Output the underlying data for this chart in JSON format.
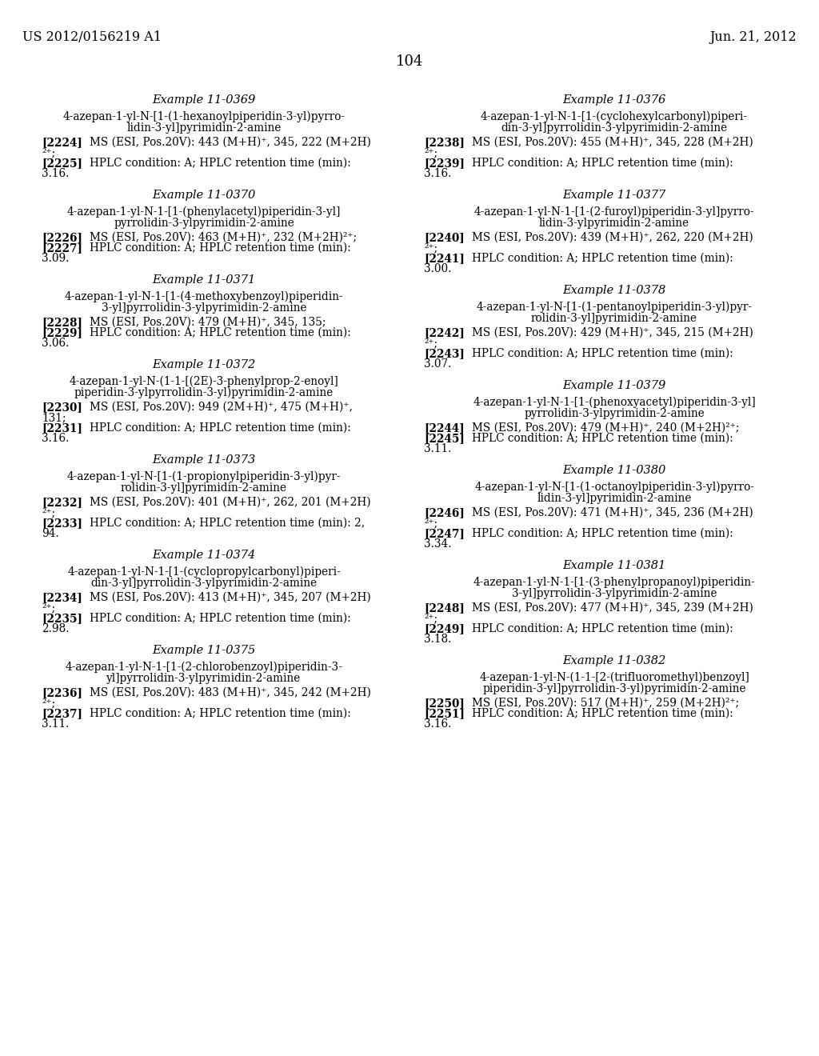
{
  "header_left": "US 2012/0156219 A1",
  "header_right": "Jun. 21, 2012",
  "page_number": "104",
  "background_color": "#ffffff",
  "left_column": [
    {
      "example": "Example 11-0369",
      "compound_lines": [
        "4-azepan-1-yl-N-[1-(1-hexanoylpiperidin-3-yl)pyrro-",
        "lidin-3-yl]pyrimidin-2-amine"
      ],
      "entries": [
        {
          "num": "2224",
          "text_lines": [
            "MS (ESI, Pos.20V): 443 (M+H)⁺, 345, 222 (M+2H)",
            "²⁺;"
          ]
        },
        {
          "num": "2225",
          "text_lines": [
            "HPLC condition: A; HPLC retention time (min):",
            "3.16."
          ]
        }
      ]
    },
    {
      "example": "Example 11-0370",
      "compound_lines": [
        "4-azepan-1-yl-N-1-[1-(phenylacetyl)piperidin-3-yl]",
        "pyrrolidin-3-ylpyrimidin-2-amine"
      ],
      "entries": [
        {
          "num": "2226",
          "text_lines": [
            "MS (ESI, Pos.20V): 463 (M+H)⁺, 232 (M+2H)²⁺;"
          ]
        },
        {
          "num": "2227",
          "text_lines": [
            "HPLC condition: A; HPLC retention time (min):",
            "3.09."
          ]
        }
      ]
    },
    {
      "example": "Example 11-0371",
      "compound_lines": [
        "4-azepan-1-yl-N-1-[1-(4-methoxybenzoyl)piperidin-",
        "3-yl]pyrrolidin-3-ylpyrimidin-2-amine"
      ],
      "entries": [
        {
          "num": "2228",
          "text_lines": [
            "MS (ESI, Pos.20V): 479 (M+H)⁺, 345, 135;"
          ]
        },
        {
          "num": "2229",
          "text_lines": [
            "HPLC condition: A; HPLC retention time (min):",
            "3.06."
          ]
        }
      ]
    },
    {
      "example": "Example 11-0372",
      "compound_lines": [
        "4-azepan-1-yl-N-(1-1-[(2E)-3-phenylprop-2-enoyl]",
        "piperidin-3-ylpyrrolidin-3-yl)pyrimidin-2-amine"
      ],
      "entries": [
        {
          "num": "2230",
          "text_lines": [
            "MS (ESI, Pos.20V): 949 (2M+H)⁺, 475 (M+H)⁺,",
            "131;"
          ]
        },
        {
          "num": "2231",
          "text_lines": [
            "HPLC condition: A; HPLC retention time (min):",
            "3.16."
          ]
        }
      ]
    },
    {
      "example": "Example 11-0373",
      "compound_lines": [
        "4-azepan-1-yl-N-[1-(1-propionylpiperidin-3-yl)pyr-",
        "rolidin-3-yl]pyrimidin-2-amine"
      ],
      "entries": [
        {
          "num": "2232",
          "text_lines": [
            "MS (ESI, Pos.20V): 401 (M+H)⁺, 262, 201 (M+2H)",
            "²⁺;"
          ]
        },
        {
          "num": "2233",
          "text_lines": [
            "HPLC condition: A; HPLC retention time (min): 2,",
            "94."
          ]
        }
      ]
    },
    {
      "example": "Example 11-0374",
      "compound_lines": [
        "4-azepan-1-yl-N-1-[1-(cyclopropylcarbonyl)piperi-",
        "din-3-yl]pyrrolidin-3-ylpyrimidin-2-amine"
      ],
      "entries": [
        {
          "num": "2234",
          "text_lines": [
            "MS (ESI, Pos.20V): 413 (M+H)⁺, 345, 207 (M+2H)",
            "²⁺;"
          ]
        },
        {
          "num": "2235",
          "text_lines": [
            "HPLC condition: A; HPLC retention time (min):",
            "2.98."
          ]
        }
      ]
    },
    {
      "example": "Example 11-0375",
      "compound_lines": [
        "4-azepan-1-yl-N-1-[1-(2-chlorobenzoyl)piperidin-3-",
        "yl]pyrrolidin-3-ylpyrimidin-2-amine"
      ],
      "entries": [
        {
          "num": "2236",
          "text_lines": [
            "MS (ESI, Pos.20V): 483 (M+H)⁺, 345, 242 (M+2H)",
            "²⁺;"
          ]
        },
        {
          "num": "2237",
          "text_lines": [
            "HPLC condition: A; HPLC retention time (min):",
            "3.11."
          ]
        }
      ]
    }
  ],
  "right_column": [
    {
      "example": "Example 11-0376",
      "compound_lines": [
        "4-azepan-1-yl-N-1-[1-(cyclohexylcarbonyl)piperi-",
        "din-3-yl]pyrrolidin-3-ylpyrimidin-2-amine"
      ],
      "entries": [
        {
          "num": "2238",
          "text_lines": [
            "MS (ESI, Pos.20V): 455 (M+H)⁺, 345, 228 (M+2H)",
            "²⁺;"
          ]
        },
        {
          "num": "2239",
          "text_lines": [
            "HPLC condition: A; HPLC retention time (min):",
            "3.16."
          ]
        }
      ]
    },
    {
      "example": "Example 11-0377",
      "compound_lines": [
        "4-azepan-1-yl-N-1-[1-(2-furoyl)piperidin-3-yl]pyrro-",
        "lidin-3-ylpyrimidin-2-amine"
      ],
      "entries": [
        {
          "num": "2240",
          "text_lines": [
            "MS (ESI, Pos.20V): 439 (M+H)⁺, 262, 220 (M+2H)",
            "²⁺;"
          ]
        },
        {
          "num": "2241",
          "text_lines": [
            "HPLC condition: A; HPLC retention time (min):",
            "3.00."
          ]
        }
      ]
    },
    {
      "example": "Example 11-0378",
      "compound_lines": [
        "4-azepan-1-yl-N-[1-(1-pentanoylpiperidin-3-yl)pyr-",
        "rolidin-3-yl]pyrimidin-2-amine"
      ],
      "entries": [
        {
          "num": "2242",
          "text_lines": [
            "MS (ESI, Pos.20V): 429 (M+H)⁺, 345, 215 (M+2H)",
            "²⁺;"
          ]
        },
        {
          "num": "2243",
          "text_lines": [
            "HPLC condition: A; HPLC retention time (min):",
            "3.07."
          ]
        }
      ]
    },
    {
      "example": "Example 11-0379",
      "compound_lines": [
        "4-azepan-1-yl-N-1-[1-(phenoxyacetyl)piperidin-3-yl]",
        "pyrrolidin-3-ylpyrimidin-2-amine"
      ],
      "entries": [
        {
          "num": "2244",
          "text_lines": [
            "MS (ESI, Pos.20V): 479 (M+H)⁺, 240 (M+2H)²⁺;"
          ]
        },
        {
          "num": "2245",
          "text_lines": [
            "HPLC condition: A; HPLC retention time (min):",
            "3.11."
          ]
        }
      ]
    },
    {
      "example": "Example 11-0380",
      "compound_lines": [
        "4-azepan-1-yl-N-[1-(1-octanoylpiperidin-3-yl)pyrro-",
        "lidin-3-yl]pyrimidin-2-amine"
      ],
      "entries": [
        {
          "num": "2246",
          "text_lines": [
            "MS (ESI, Pos.20V): 471 (M+H)⁺, 345, 236 (M+2H)",
            "²⁺;"
          ]
        },
        {
          "num": "2247",
          "text_lines": [
            "HPLC condition: A; HPLC retention time (min):",
            "3.34."
          ]
        }
      ]
    },
    {
      "example": "Example 11-0381",
      "compound_lines": [
        "4-azepan-1-yl-N-1-[1-(3-phenylpropanoyl)piperidin-",
        "3-yl]pyrrolidin-3-ylpyrimidin-2-amine"
      ],
      "entries": [
        {
          "num": "2248",
          "text_lines": [
            "MS (ESI, Pos.20V): 477 (M+H)⁺, 345, 239 (M+2H)",
            "²⁺;"
          ]
        },
        {
          "num": "2249",
          "text_lines": [
            "HPLC condition: A; HPLC retention time (min):",
            "3.18."
          ]
        }
      ]
    },
    {
      "example": "Example 11-0382",
      "compound_lines": [
        "4-azepan-1-yl-N-(1-1-[2-(trifluoromethyl)benzoyl]",
        "piperidin-3-yl]pyrrolidin-3-yl)pyrimidin-2-amine"
      ],
      "entries": [
        {
          "num": "2250",
          "text_lines": [
            "MS (ESI, Pos.20V): 517 (M+H)⁺, 259 (M+2H)²⁺;"
          ]
        },
        {
          "num": "2251",
          "text_lines": [
            "HPLC condition: A; HPLC retention time (min):",
            "3.16."
          ]
        }
      ]
    }
  ]
}
